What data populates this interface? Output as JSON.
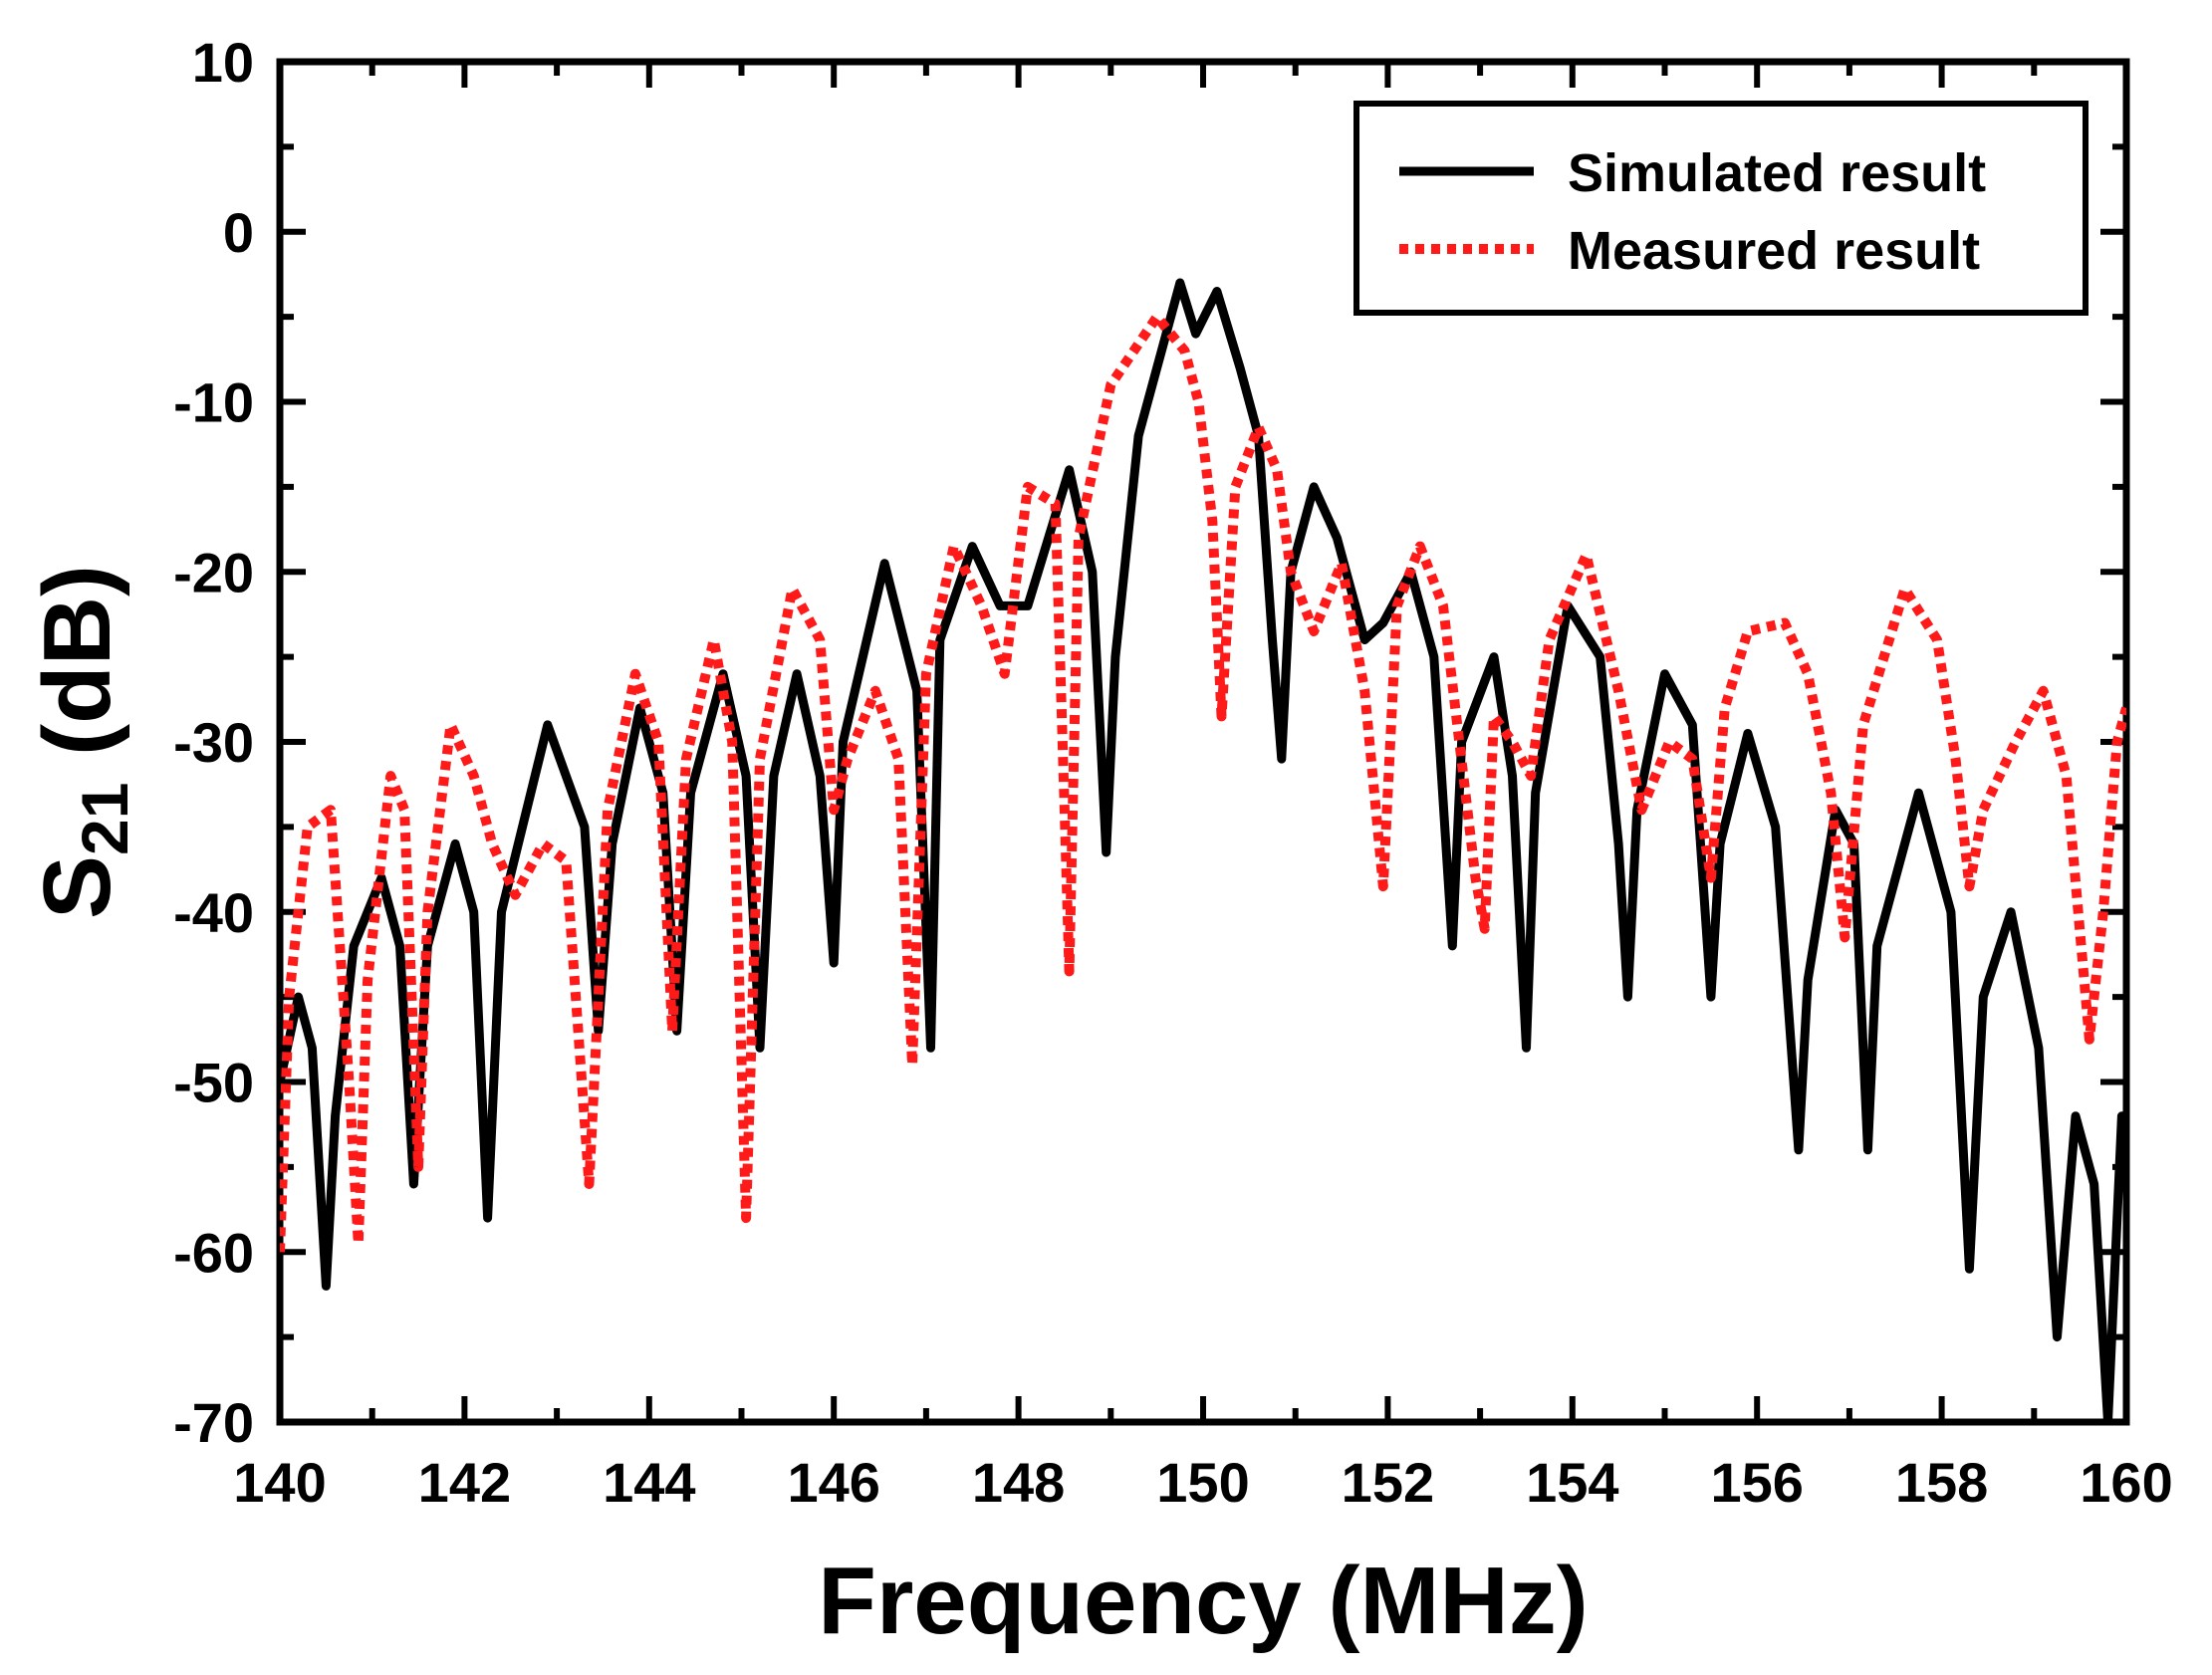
{
  "chart_data": {
    "type": "line",
    "title": "",
    "xlabel": "Frequency (MHz)",
    "ylabel": "S21 (dB)",
    "ylabel_main": "S",
    "ylabel_sub": "21",
    "ylabel_rest": " (dB)",
    "xlim": [
      140,
      160
    ],
    "ylim": [
      -70,
      10
    ],
    "xticks": [
      140,
      142,
      144,
      146,
      148,
      150,
      152,
      154,
      156,
      158,
      160
    ],
    "xtick_labels": [
      "140",
      "142",
      "144",
      "146",
      "148",
      "150",
      "152",
      "154",
      "156",
      "158",
      "160"
    ],
    "yticks": [
      10,
      0,
      -10,
      -20,
      -30,
      -40,
      -50,
      -60,
      -70
    ],
    "ytick_labels": [
      "10",
      "0",
      "-10",
      "-20",
      "-30",
      "-40",
      "-50",
      "-60",
      "-70"
    ],
    "grid": false,
    "legend_position": "top-right",
    "series": [
      {
        "name": "Simulated result",
        "color": "#000000",
        "style": "solid",
        "points": [
          [
            140.0,
            -50
          ],
          [
            140.2,
            -45
          ],
          [
            140.35,
            -48
          ],
          [
            140.5,
            -62
          ],
          [
            140.6,
            -52
          ],
          [
            140.8,
            -42
          ],
          [
            141.1,
            -38
          ],
          [
            141.3,
            -42
          ],
          [
            141.45,
            -56
          ],
          [
            141.6,
            -42
          ],
          [
            141.9,
            -36
          ],
          [
            142.1,
            -40
          ],
          [
            142.25,
            -58
          ],
          [
            142.4,
            -40
          ],
          [
            142.9,
            -29
          ],
          [
            143.3,
            -35
          ],
          [
            143.45,
            -47
          ],
          [
            143.6,
            -36
          ],
          [
            143.9,
            -28
          ],
          [
            144.15,
            -33
          ],
          [
            144.3,
            -47
          ],
          [
            144.45,
            -33
          ],
          [
            144.8,
            -26
          ],
          [
            145.05,
            -32
          ],
          [
            145.2,
            -48
          ],
          [
            145.35,
            -32
          ],
          [
            145.6,
            -26
          ],
          [
            145.85,
            -32
          ],
          [
            146.0,
            -43
          ],
          [
            146.1,
            -30
          ],
          [
            146.55,
            -19.5
          ],
          [
            146.9,
            -27
          ],
          [
            147.05,
            -48
          ],
          [
            147.15,
            -24
          ],
          [
            147.5,
            -18.5
          ],
          [
            147.8,
            -22
          ],
          [
            147.9,
            -22
          ],
          [
            148.1,
            -22
          ],
          [
            148.55,
            -14
          ],
          [
            148.8,
            -20
          ],
          [
            148.95,
            -36.5
          ],
          [
            149.05,
            -25
          ],
          [
            149.3,
            -12
          ],
          [
            149.55,
            -7
          ],
          [
            149.75,
            -3
          ],
          [
            149.92,
            -6
          ],
          [
            150.15,
            -3.5
          ],
          [
            150.4,
            -8
          ],
          [
            150.6,
            -12
          ],
          [
            150.75,
            -24
          ],
          [
            150.85,
            -31
          ],
          [
            150.95,
            -20
          ],
          [
            151.2,
            -15
          ],
          [
            151.45,
            -18
          ],
          [
            151.75,
            -24
          ],
          [
            151.95,
            -23
          ],
          [
            152.25,
            -20
          ],
          [
            152.5,
            -25
          ],
          [
            152.7,
            -42
          ],
          [
            152.8,
            -30
          ],
          [
            153.15,
            -25
          ],
          [
            153.35,
            -32
          ],
          [
            153.5,
            -48
          ],
          [
            153.6,
            -33
          ],
          [
            153.95,
            -22
          ],
          [
            154.3,
            -25
          ],
          [
            154.5,
            -36
          ],
          [
            154.6,
            -45
          ],
          [
            154.7,
            -34
          ],
          [
            155.0,
            -26
          ],
          [
            155.3,
            -29
          ],
          [
            155.5,
            -45
          ],
          [
            155.6,
            -36
          ],
          [
            155.9,
            -29.5
          ],
          [
            156.2,
            -35
          ],
          [
            156.45,
            -54
          ],
          [
            156.55,
            -44
          ],
          [
            156.85,
            -34
          ],
          [
            157.05,
            -36
          ],
          [
            157.2,
            -54
          ],
          [
            157.3,
            -42
          ],
          [
            157.75,
            -33
          ],
          [
            158.1,
            -40
          ],
          [
            158.3,
            -61
          ],
          [
            158.45,
            -45
          ],
          [
            158.75,
            -40
          ],
          [
            159.05,
            -48
          ],
          [
            159.25,
            -65
          ],
          [
            159.45,
            -52
          ],
          [
            159.65,
            -56
          ],
          [
            159.8,
            -70
          ],
          [
            159.95,
            -52
          ],
          [
            160.0,
            -52
          ]
        ]
      },
      {
        "name": "Measured result",
        "color": "#ff1a1a",
        "style": "dotted",
        "points": [
          [
            140.0,
            -60
          ],
          [
            140.1,
            -45
          ],
          [
            140.3,
            -35
          ],
          [
            140.55,
            -34
          ],
          [
            140.75,
            -50
          ],
          [
            140.85,
            -59.5
          ],
          [
            140.95,
            -44
          ],
          [
            141.2,
            -32
          ],
          [
            141.35,
            -34
          ],
          [
            141.5,
            -55
          ],
          [
            141.6,
            -40
          ],
          [
            141.85,
            -29
          ],
          [
            142.1,
            -32
          ],
          [
            142.3,
            -36
          ],
          [
            142.55,
            -39
          ],
          [
            142.85,
            -36
          ],
          [
            143.1,
            -37
          ],
          [
            143.35,
            -56
          ],
          [
            143.55,
            -34
          ],
          [
            143.85,
            -26
          ],
          [
            144.1,
            -30
          ],
          [
            144.25,
            -47
          ],
          [
            144.4,
            -31
          ],
          [
            144.7,
            -24
          ],
          [
            144.9,
            -30
          ],
          [
            145.05,
            -58
          ],
          [
            145.2,
            -31
          ],
          [
            145.55,
            -21
          ],
          [
            145.85,
            -24
          ],
          [
            146.0,
            -34
          ],
          [
            146.15,
            -31
          ],
          [
            146.45,
            -27
          ],
          [
            146.7,
            -31
          ],
          [
            146.85,
            -49
          ],
          [
            147.0,
            -26
          ],
          [
            147.3,
            -18.5
          ],
          [
            147.6,
            -22
          ],
          [
            147.85,
            -26
          ],
          [
            148.1,
            -15
          ],
          [
            148.4,
            -16
          ],
          [
            148.5,
            -34
          ],
          [
            148.55,
            -43.5
          ],
          [
            148.65,
            -18
          ],
          [
            149.0,
            -9
          ],
          [
            149.5,
            -5
          ],
          [
            149.8,
            -7
          ],
          [
            149.95,
            -10
          ],
          [
            150.1,
            -17
          ],
          [
            150.2,
            -28.5
          ],
          [
            150.35,
            -15
          ],
          [
            150.6,
            -11.5
          ],
          [
            150.8,
            -14
          ],
          [
            150.95,
            -20
          ],
          [
            151.2,
            -23.5
          ],
          [
            151.5,
            -19.5
          ],
          [
            151.75,
            -27
          ],
          [
            151.95,
            -38.5
          ],
          [
            152.1,
            -22
          ],
          [
            152.35,
            -18.5
          ],
          [
            152.6,
            -22
          ],
          [
            152.95,
            -38
          ],
          [
            153.05,
            -41
          ],
          [
            153.15,
            -28.5
          ],
          [
            153.35,
            -30
          ],
          [
            153.55,
            -32
          ],
          [
            153.75,
            -24
          ],
          [
            154.15,
            -19
          ],
          [
            154.5,
            -27
          ],
          [
            154.75,
            -34
          ],
          [
            155.05,
            -30
          ],
          [
            155.3,
            -31
          ],
          [
            155.5,
            -38
          ],
          [
            155.65,
            -28
          ],
          [
            155.9,
            -23.5
          ],
          [
            156.3,
            -23
          ],
          [
            156.55,
            -26
          ],
          [
            156.8,
            -33
          ],
          [
            156.95,
            -41.5
          ],
          [
            157.15,
            -29
          ],
          [
            157.6,
            -21
          ],
          [
            157.95,
            -24
          ],
          [
            158.15,
            -31
          ],
          [
            158.3,
            -38.5
          ],
          [
            158.45,
            -34
          ],
          [
            158.8,
            -30
          ],
          [
            159.1,
            -27
          ],
          [
            159.35,
            -32
          ],
          [
            159.6,
            -47.5
          ],
          [
            159.75,
            -40
          ],
          [
            159.9,
            -30
          ],
          [
            160.0,
            -28
          ]
        ]
      }
    ]
  }
}
